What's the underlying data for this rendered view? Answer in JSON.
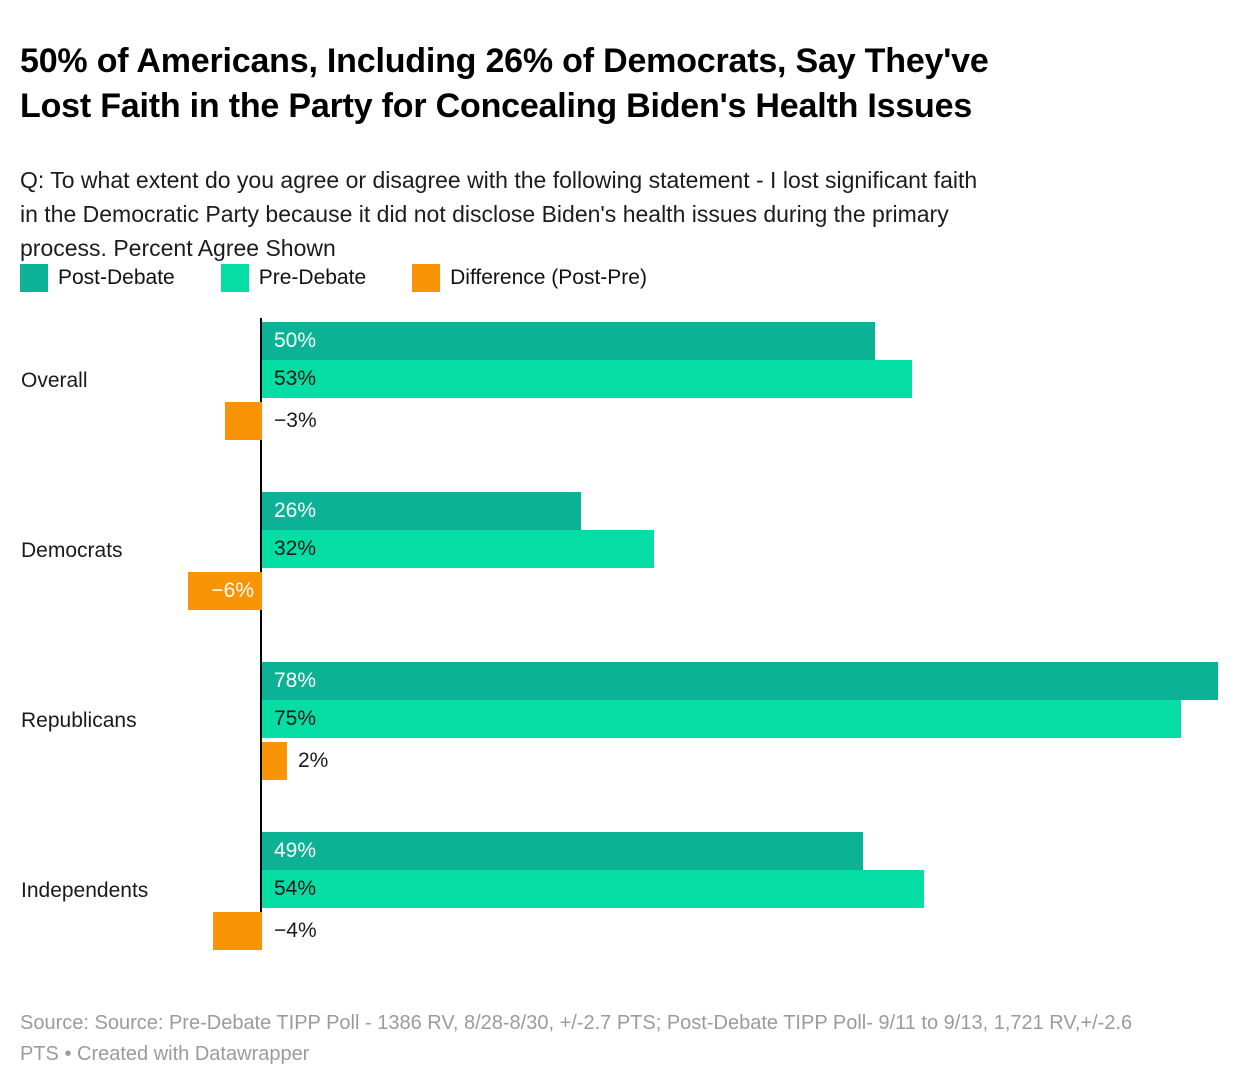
{
  "header": {
    "title_lines": [
      "50% of Americans, Including 26% of Democrats, Say They've",
      "Lost Faith in the Party for Concealing Biden's Health Issues"
    ],
    "subtitle_lines": [
      "Q: To what extent do you agree or disagree with the following statement - I lost significant faith",
      "in the Democratic Party because it did not disclose Biden's health issues during the primary",
      "process. Percent Agree Shown"
    ]
  },
  "legend": [
    {
      "id": "post",
      "label": "Post-Debate",
      "color": "#0BB296"
    },
    {
      "id": "pre",
      "label": "Pre-Debate",
      "color": "#04DDA3"
    },
    {
      "id": "diff",
      "label": "Difference (Post-Pre)",
      "color": "#F89406"
    }
  ],
  "colors": {
    "post_bar": "#0BB296",
    "pre_bar": "#04DDA3",
    "diff_bar": "#F89406",
    "axis": "#000000",
    "title_text": "#000000",
    "body_text": "#1A1A1A",
    "footer_text": "#9B9B9B",
    "label_on_post": "#FFFFFF",
    "label_on_pre": "#1A1A1A"
  },
  "chart_data": {
    "type": "bar",
    "orientation": "horizontal",
    "title": "50% of Americans, Including 26% of Democrats, Say They've Lost Faith in the Party for Concealing Biden's Health Issues",
    "categories": [
      "Overall",
      "Democrats",
      "Republicans",
      "Independents"
    ],
    "series": [
      {
        "name": "Post-Debate",
        "values": [
          50,
          26,
          78,
          49
        ],
        "labels": [
          "50%",
          "26%",
          "78%",
          "49%"
        ]
      },
      {
        "name": "Pre-Debate",
        "values": [
          53,
          32,
          75,
          54
        ],
        "labels": [
          "53%",
          "32%",
          "75%",
          "54%"
        ]
      },
      {
        "name": "Difference (Post-Pre)",
        "values": [
          -3,
          -6,
          2,
          -4
        ],
        "labels": [
          "−3%",
          "−6%",
          "2%",
          "−4%"
        ]
      }
    ],
    "value_unit": "%",
    "xlim": [
      0,
      78
    ],
    "grid": false,
    "legend_position": "top-left"
  },
  "footer": {
    "lines": [
      "Source: Source: Pre-Debate TIPP Poll - 1386 RV, 8/28-8/30, +/-2.7 PTS; Post-Debate TIPP Poll- 9/11 to 9/13, 1,721 RV,+/-2.6",
      "PTS • Created with Datawrapper"
    ]
  }
}
